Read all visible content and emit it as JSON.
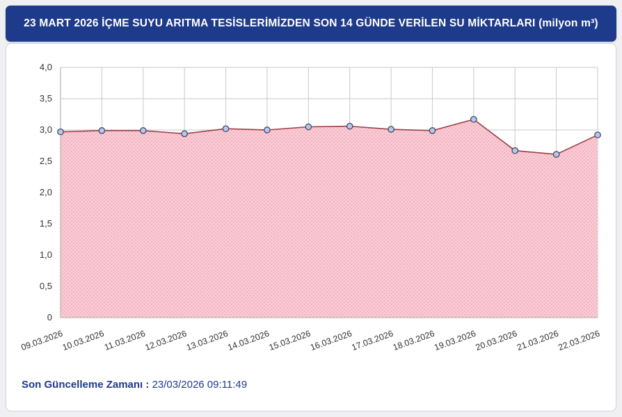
{
  "header": {
    "title": "23 MART 2026 İÇME SUYU ARITMA TESİSLERİMİZDEN SON 14 GÜNDE VERİLEN SU MİKTARLARI (milyon m³)"
  },
  "footer": {
    "label": "Son Güncelleme Zamanı :",
    "value": "23/03/2026 09:11:49"
  },
  "chart_data": {
    "type": "area",
    "title": "23 MART 2026 İÇME SUYU ARITMA TESİSLERİMİZDEN SON 14 GÜNDE VERİLEN SU MİKTARLARI (milyon m³)",
    "xlabel": "",
    "ylabel": "",
    "categories": [
      "09.03.2026",
      "10.03.2026",
      "11.03.2026",
      "12.03.2026",
      "13.03.2026",
      "14.03.2026",
      "15.03.2026",
      "16.03.2026",
      "17.03.2026",
      "18.03.2026",
      "19.03.2026",
      "20.03.2026",
      "21.03.2026",
      "22.03.2026"
    ],
    "values": [
      2.97,
      2.99,
      2.99,
      2.94,
      3.02,
      3.0,
      3.05,
      3.06,
      3.01,
      2.99,
      3.17,
      2.67,
      2.61,
      2.92
    ],
    "ylim": [
      0,
      4
    ],
    "ytick_step": 0.5,
    "ytick_labels": [
      "0",
      "0,5",
      "1,0",
      "1,5",
      "2,0",
      "2,5",
      "3,0",
      "3,5",
      "4,0"
    ],
    "grid": true,
    "legend_position": "none"
  },
  "colors": {
    "header_bg": "#1e3a8a",
    "area_fill": "#f9cdd6",
    "area_dots": "#ef9fae",
    "line": "#9c3f46",
    "marker_fill": "#b9c7ea",
    "marker_stroke": "#3f4a63",
    "grid": "#c9c9c9",
    "axis": "#aaaaaa",
    "axis_text": "#333333",
    "footer_text": "#1e3a8a"
  }
}
